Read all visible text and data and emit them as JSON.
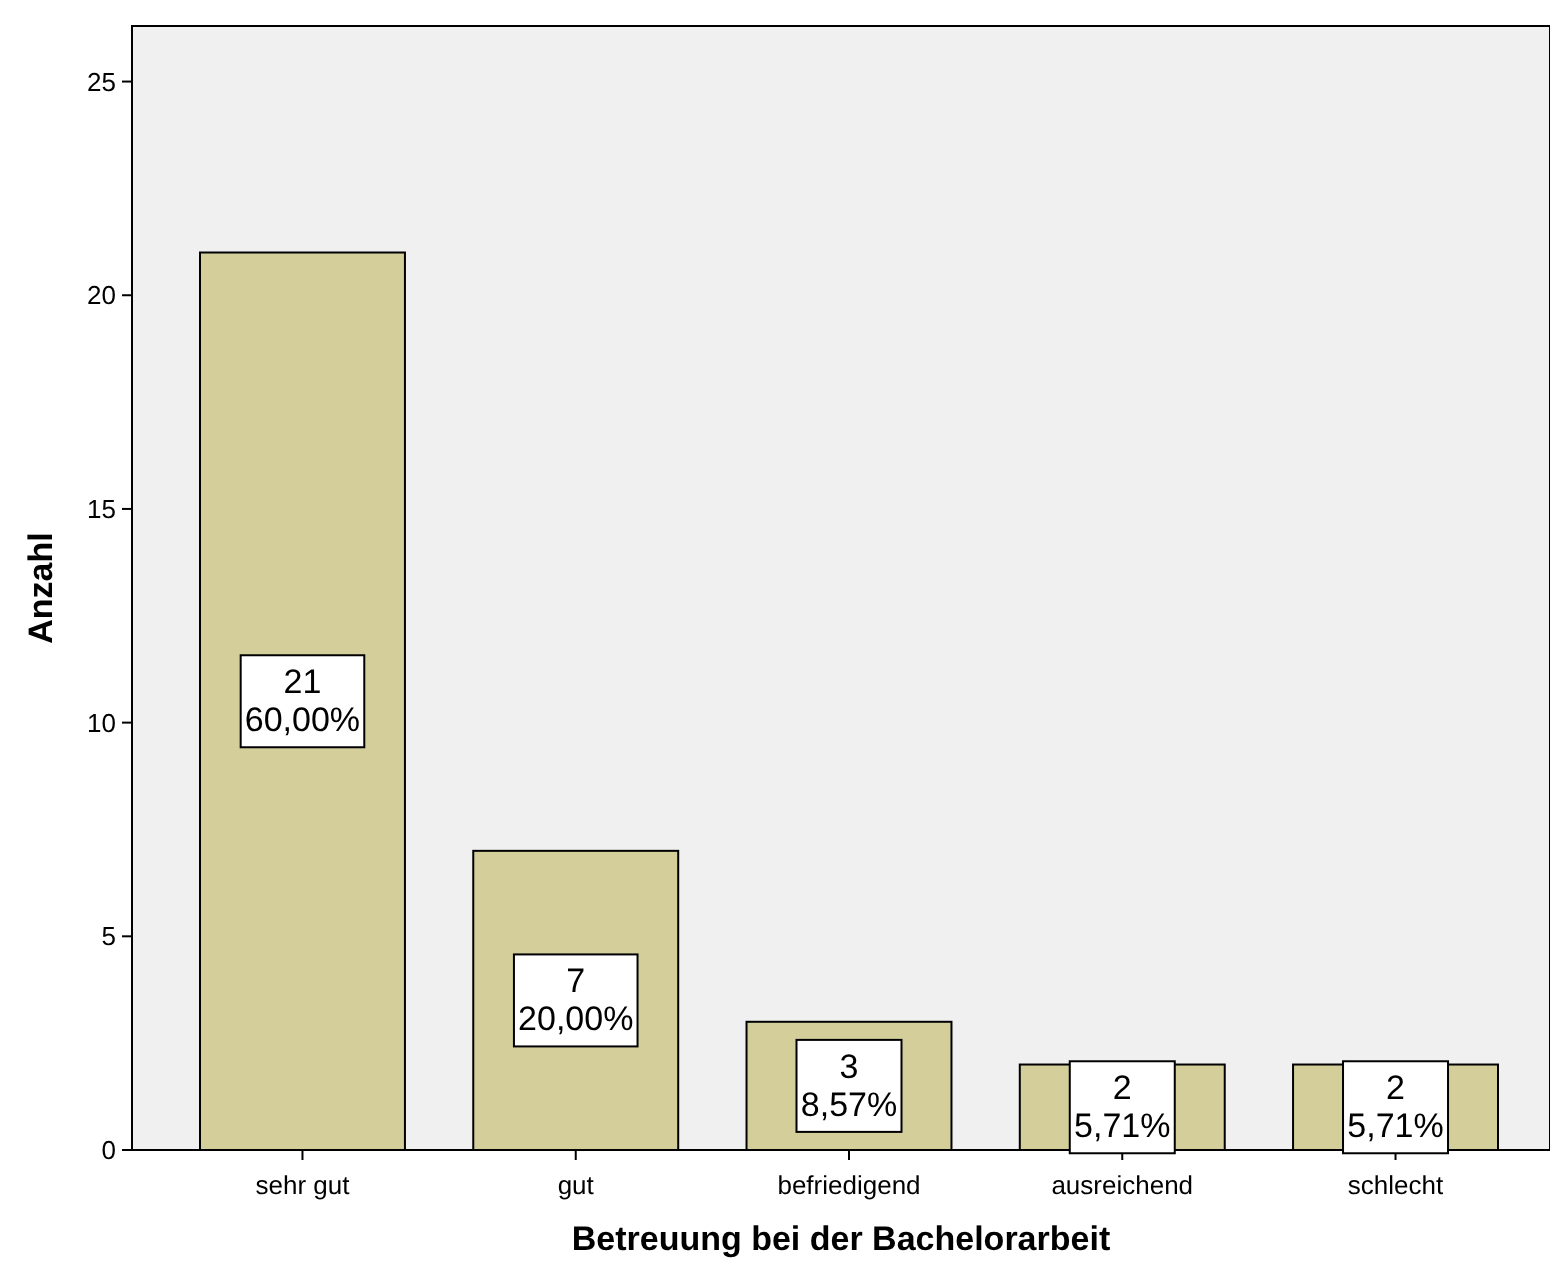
{
  "chart_data": {
    "type": "bar",
    "xlabel": "Betreuung bei der Bachelorarbeit",
    "ylabel": "Anzahl",
    "categories": [
      "sehr gut",
      "gut",
      "befriedigend",
      "ausreichend",
      "schlecht"
    ],
    "values": [
      21,
      7,
      3,
      2,
      2
    ],
    "value_labels": [
      "21\n60,00%",
      "7\n20,00%",
      "3\n8,57%",
      "2\n5,71%",
      "2\n5,71%"
    ],
    "color": "#d3ce9a",
    "ylim": [
      0,
      26.3
    ],
    "yticks": [
      0,
      5,
      10,
      15,
      20,
      25
    ],
    "grid": false
  }
}
